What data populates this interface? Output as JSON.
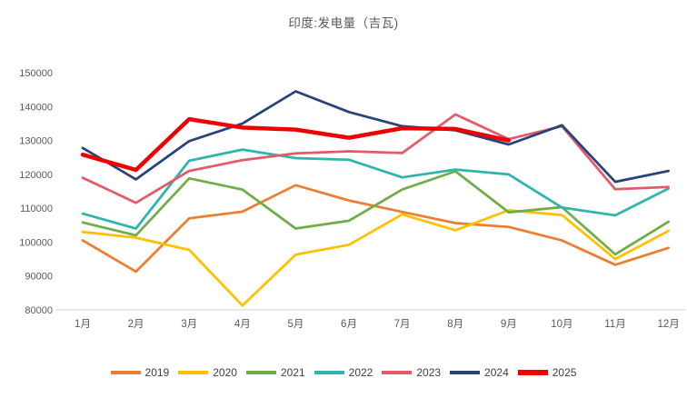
{
  "title": "印度:发电量（吉瓦)",
  "chart_data": {
    "type": "line",
    "title": "印度:发电量（吉瓦)",
    "xlabel": "",
    "ylabel": "",
    "ylim": [
      80000,
      150000
    ],
    "ytick_step": 10000,
    "ytick_labels": [
      "80000",
      "90000",
      "100000",
      "110000",
      "120000",
      "130000",
      "140000",
      "150000"
    ],
    "grid": false,
    "legend_position": "bottom",
    "categories": [
      "1月",
      "2月",
      "3月",
      "4月",
      "5月",
      "6月",
      "7月",
      "8月",
      "9月",
      "10月",
      "11月",
      "12月"
    ],
    "series": [
      {
        "name": "2019",
        "color": "#ED7D31",
        "width": 2.75,
        "values": [
          100500,
          91300,
          107000,
          109000,
          116800,
          112300,
          108900,
          105600,
          104500,
          100500,
          93300,
          98300
        ]
      },
      {
        "name": "2020",
        "color": "#FFC000",
        "width": 2.75,
        "values": [
          103000,
          101300,
          97700,
          81300,
          96300,
          99200,
          108200,
          103500,
          109400,
          108000,
          95000,
          103300
        ]
      },
      {
        "name": "2021",
        "color": "#70AD47",
        "width": 2.75,
        "values": [
          105800,
          102000,
          118800,
          115500,
          104000,
          106300,
          115500,
          120900,
          108800,
          110300,
          96400,
          106000
        ]
      },
      {
        "name": "2022",
        "color": "#2EB5AD",
        "width": 2.75,
        "values": [
          108400,
          104000,
          124000,
          127300,
          124800,
          124300,
          119100,
          121400,
          120000,
          110200,
          107900,
          115800
        ]
      },
      {
        "name": "2023",
        "color": "#E15C68",
        "width": 2.75,
        "values": [
          119000,
          111600,
          121000,
          124200,
          126200,
          126800,
          126300,
          137700,
          130400,
          134200,
          115600,
          116300
        ]
      },
      {
        "name": "2024",
        "color": "#26437C",
        "width": 2.75,
        "values": [
          127800,
          118500,
          129800,
          135000,
          144500,
          138400,
          134200,
          133000,
          128800,
          134500,
          117800,
          121000
        ]
      },
      {
        "name": "2025",
        "color": "#EE0000",
        "width": 4.5,
        "values": [
          125800,
          121300,
          136300,
          133800,
          133200,
          130800,
          133600,
          133400,
          130000,
          null,
          null,
          null
        ]
      }
    ]
  },
  "legend": {
    "items": [
      "2019",
      "2020",
      "2021",
      "2022",
      "2023",
      "2024",
      "2025"
    ]
  },
  "axis_color": "#D9D9D9",
  "text_color": "#595959"
}
